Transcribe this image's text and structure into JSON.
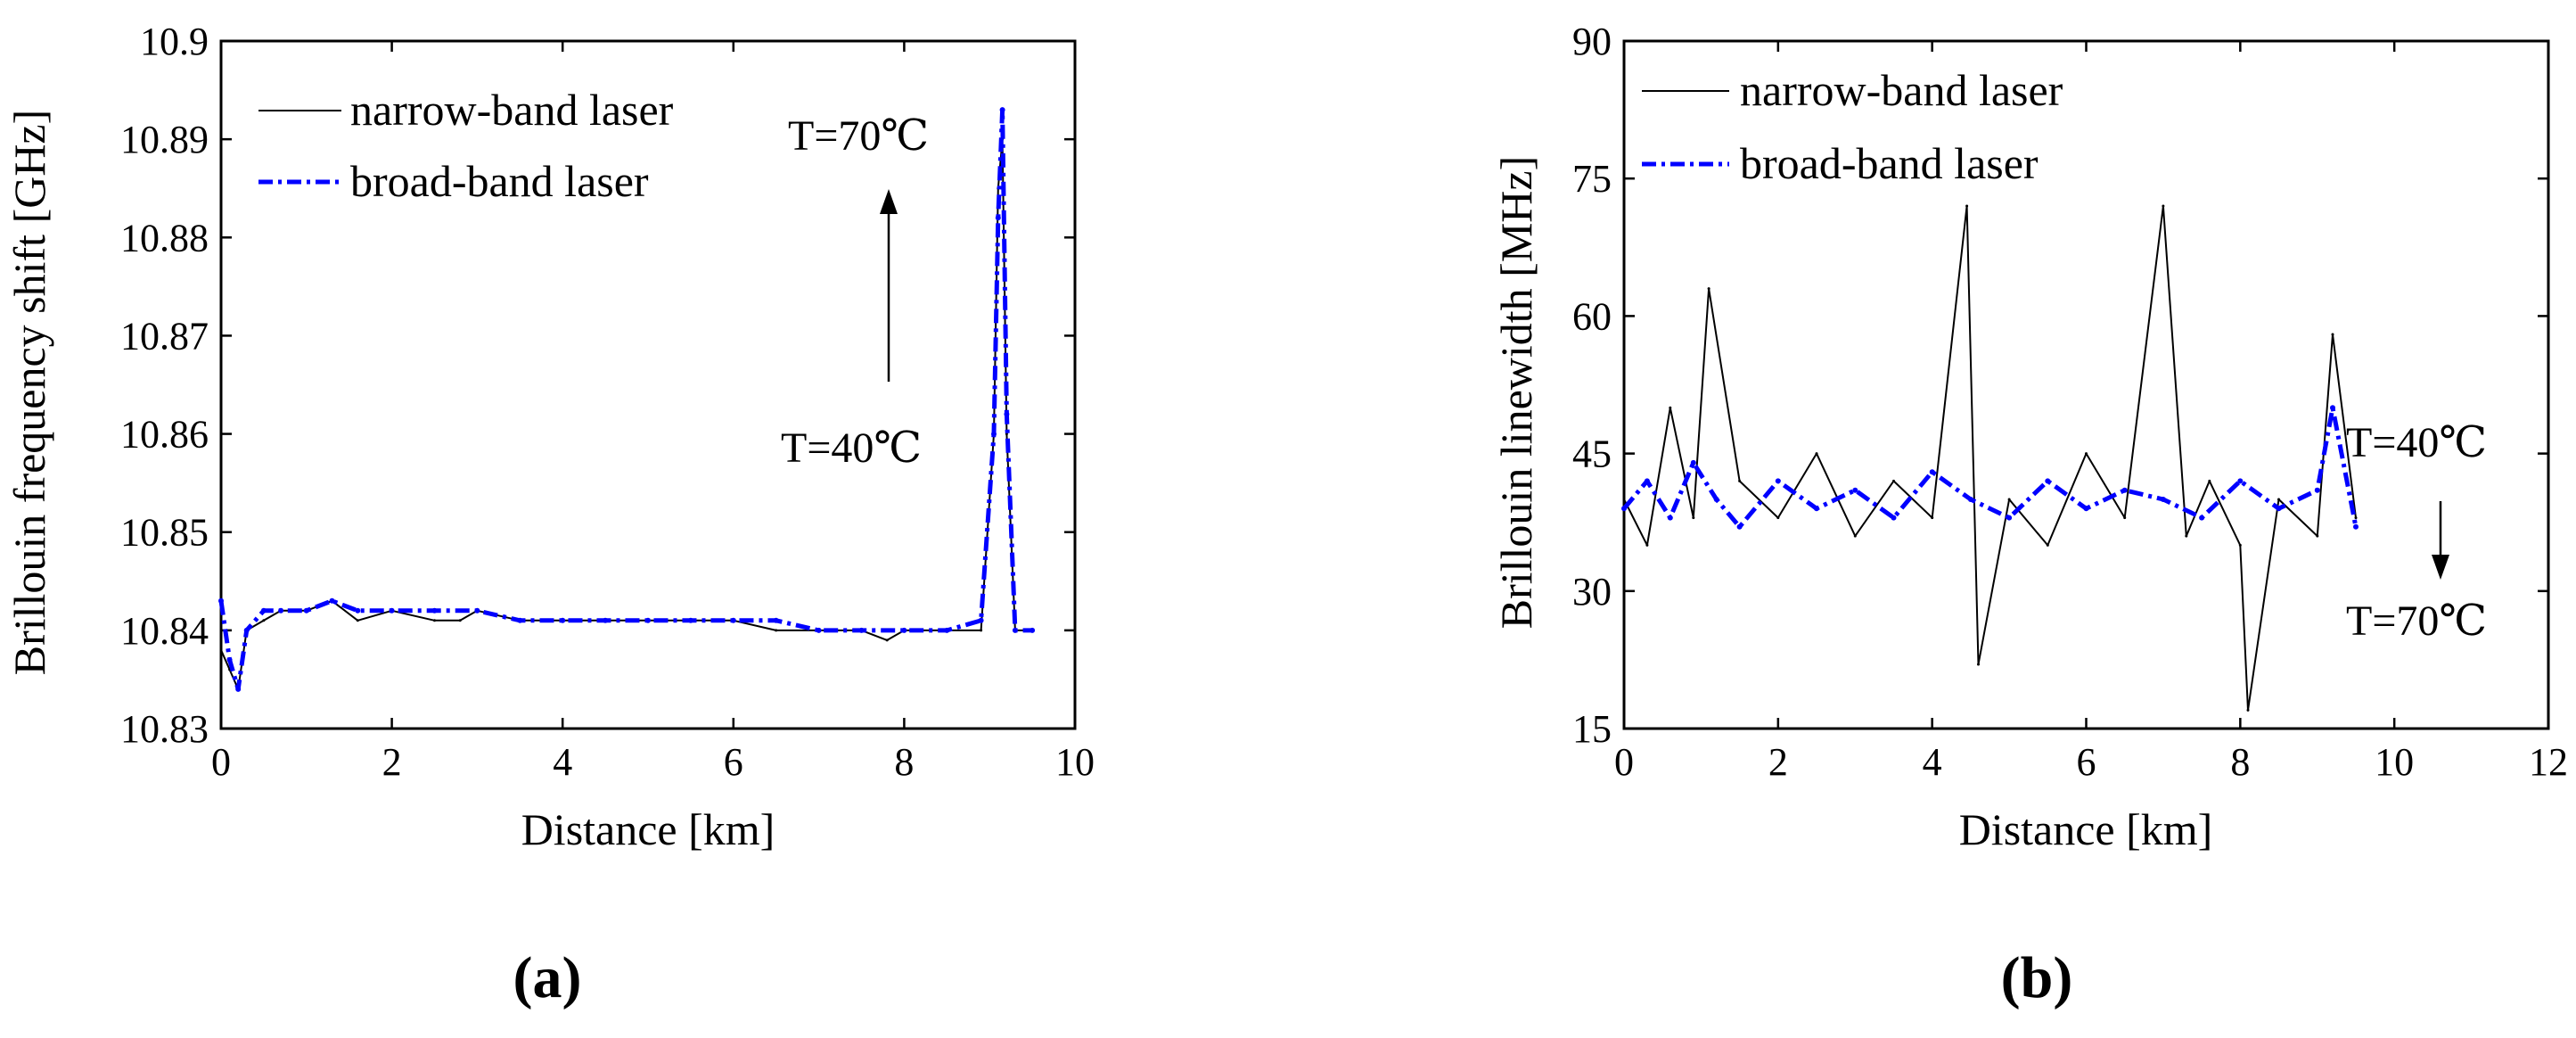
{
  "colors": {
    "narrow": "#000000",
    "broad": "#0000ff",
    "axis": "#000000"
  },
  "chart_data": [
    {
      "panel": "(a)",
      "type": "line",
      "xlabel": "Distance [km]",
      "ylabel": "Brillouin frequency shift [GHz]",
      "xlim": [
        0,
        10
      ],
      "ylim": [
        10.83,
        10.9
      ],
      "xticks": [
        "0",
        "2",
        "4",
        "6",
        "8",
        "10"
      ],
      "yticks": [
        "10.83",
        "10.84",
        "10.85",
        "10.86",
        "10.87",
        "10.88",
        "10.89",
        "10.9"
      ],
      "grid": false,
      "legend_position": "top-left",
      "series": [
        {
          "name": "narrow-band laser",
          "style": "solid-thin",
          "x": [
            0.0,
            0.1,
            0.2,
            0.3,
            0.5,
            0.7,
            1.0,
            1.3,
            1.6,
            2.0,
            2.5,
            2.8,
            3.0,
            3.5,
            4.0,
            4.5,
            5.0,
            5.5,
            6.0,
            6.5,
            7.0,
            7.5,
            7.8,
            8.0,
            8.5,
            8.9,
            9.05,
            9.1,
            9.15,
            9.2,
            9.3,
            9.5
          ],
          "y": [
            10.838,
            10.836,
            10.834,
            10.84,
            10.841,
            10.842,
            10.842,
            10.843,
            10.841,
            10.842,
            10.841,
            10.841,
            10.842,
            10.841,
            10.841,
            10.841,
            10.841,
            10.841,
            10.841,
            10.84,
            10.84,
            10.84,
            10.839,
            10.84,
            10.84,
            10.84,
            10.86,
            10.885,
            10.89,
            10.86,
            10.84,
            10.84
          ]
        },
        {
          "name": "broad-band laser",
          "style": "dash-dot",
          "x": [
            0.0,
            0.1,
            0.2,
            0.3,
            0.5,
            0.7,
            1.0,
            1.3,
            1.6,
            2.0,
            2.5,
            3.0,
            3.5,
            4.0,
            4.5,
            5.0,
            5.5,
            6.0,
            6.5,
            7.0,
            7.5,
            8.0,
            8.5,
            8.9,
            9.05,
            9.1,
            9.15,
            9.2,
            9.3,
            9.5
          ],
          "y": [
            10.843,
            10.837,
            10.834,
            10.84,
            10.842,
            10.842,
            10.842,
            10.843,
            10.842,
            10.842,
            10.842,
            10.842,
            10.841,
            10.841,
            10.841,
            10.841,
            10.841,
            10.841,
            10.841,
            10.84,
            10.84,
            10.84,
            10.84,
            10.841,
            10.86,
            10.882,
            10.893,
            10.862,
            10.84,
            10.84
          ]
        }
      ],
      "annotations": [
        "T=70℃",
        "T=40℃"
      ]
    },
    {
      "panel": "(b)",
      "type": "line",
      "xlabel": "Distance [km]",
      "ylabel": "Brillouin linewidth [MHz]",
      "xlim": [
        0,
        12
      ],
      "ylim": [
        15,
        90
      ],
      "xticks": [
        "0",
        "2",
        "4",
        "6",
        "8",
        "10",
        "12"
      ],
      "yticks": [
        "15",
        "30",
        "45",
        "60",
        "75",
        "90"
      ],
      "grid": false,
      "legend_position": "top-left",
      "series": [
        {
          "name": "narrow-band laser",
          "style": "solid-thin",
          "x": [
            0.0,
            0.3,
            0.6,
            0.9,
            1.1,
            1.5,
            2.0,
            2.5,
            3.0,
            3.5,
            4.0,
            4.45,
            4.6,
            5.0,
            5.5,
            6.0,
            6.5,
            7.0,
            7.3,
            7.6,
            8.0,
            8.1,
            8.5,
            9.0,
            9.2,
            9.5
          ],
          "y": [
            40,
            35,
            50,
            38,
            63,
            42,
            38,
            45,
            36,
            42,
            38,
            72,
            22,
            40,
            35,
            45,
            38,
            72,
            36,
            42,
            35,
            17,
            40,
            36,
            58,
            38
          ]
        },
        {
          "name": "broad-band laser",
          "style": "dash-dot",
          "x": [
            0.0,
            0.3,
            0.6,
            0.9,
            1.2,
            1.5,
            2.0,
            2.5,
            3.0,
            3.5,
            4.0,
            4.5,
            5.0,
            5.5,
            6.0,
            6.5,
            7.0,
            7.5,
            8.0,
            8.5,
            9.0,
            9.2,
            9.5
          ],
          "y": [
            39,
            42,
            38,
            44,
            40,
            37,
            42,
            39,
            41,
            38,
            43,
            40,
            38,
            42,
            39,
            41,
            40,
            38,
            42,
            39,
            41,
            50,
            37
          ]
        }
      ],
      "annotations": [
        "T=40℃",
        "T=70℃"
      ]
    }
  ]
}
